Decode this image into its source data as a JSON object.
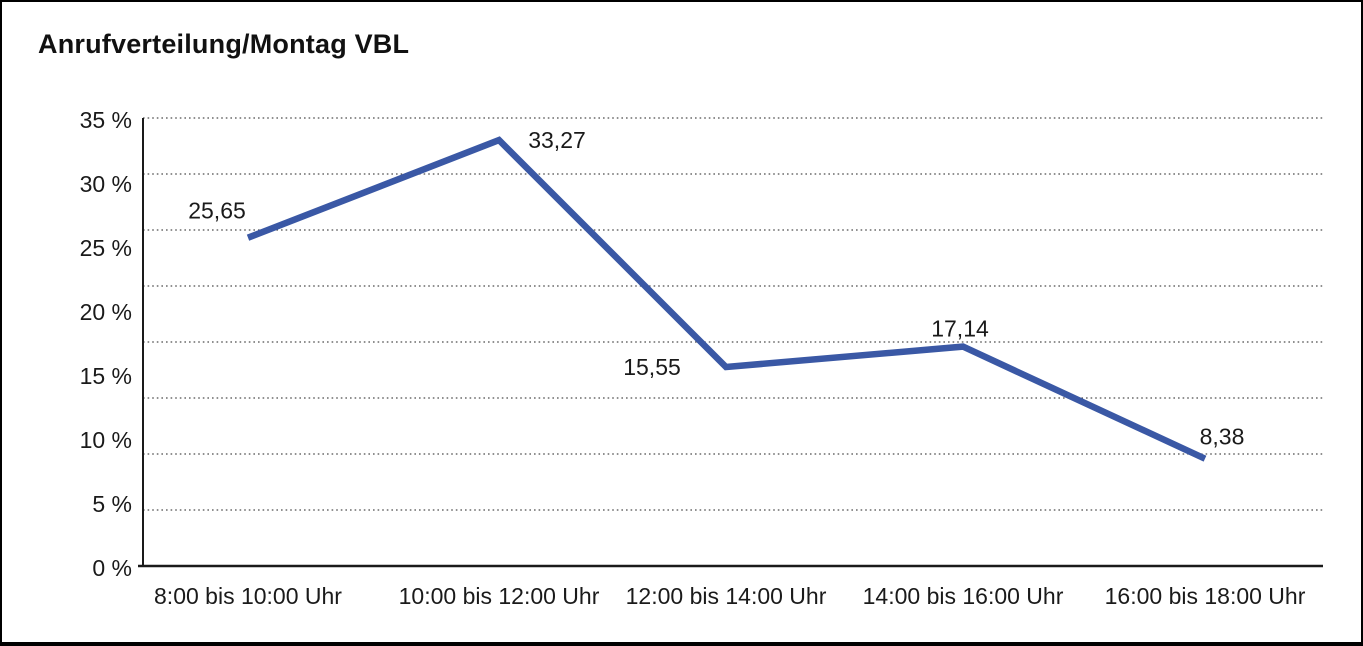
{
  "title": "Anrufverteilung/Montag VBL",
  "chart_data": {
    "type": "line",
    "title": "Anrufverteilung/Montag VBL",
    "categories": [
      "8:00 bis 10:00 Uhr",
      "10:00 bis 12:00 Uhr",
      "12:00 bis 14:00 Uhr",
      "14:00 bis 16:00 Uhr",
      "16:00 bis 18:00 Uhr"
    ],
    "values": [
      25.65,
      33.27,
      15.55,
      17.14,
      8.38
    ],
    "data_labels": [
      "25,65",
      "33,27",
      "15,55",
      "17,14",
      "8,38"
    ],
    "y_ticks": [
      "35 %",
      "30 %",
      "25 %",
      "20 %",
      "15 %",
      "10 %",
      "5 %",
      "0 %"
    ],
    "ylim": [
      0,
      35
    ],
    "xlabel": "",
    "ylabel": "",
    "grid": "horizontal-dotted",
    "legend": "none",
    "line_color": "#3A58A5",
    "axis_color": "#1a1a1a",
    "grid_color": "#4d4d4d",
    "text_color": "#1a1a1a"
  }
}
